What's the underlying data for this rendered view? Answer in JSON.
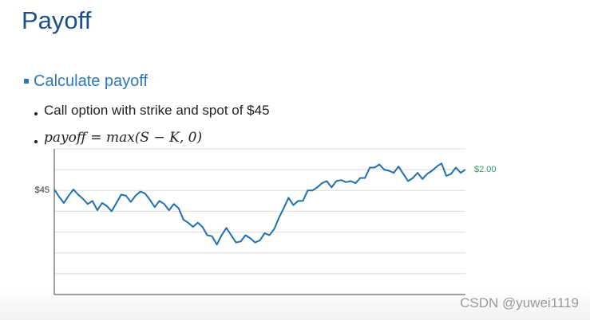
{
  "title": "Payoff",
  "bullets": [
    "Calculate payoff",
    "Call option with strike and spot of $45",
    "payoff = max(S − K, 0)"
  ],
  "watermark": "CSDN @yuwei1119",
  "chart_data": {
    "type": "line",
    "values": [
      45.1,
      44.4,
      43.8,
      44.5,
      45.1,
      44.6,
      44.2,
      43.7,
      44.0,
      43.1,
      43.8,
      43.5,
      43.0,
      43.8,
      44.6,
      44.5,
      43.9,
      44.5,
      44.9,
      44.7,
      44.1,
      43.4,
      44.0,
      43.7,
      43.1,
      43.7,
      43.3,
      42.2,
      41.9,
      41.5,
      41.9,
      41.5,
      40.7,
      40.6,
      39.8,
      40.7,
      41.4,
      40.7,
      40.0,
      40.1,
      40.7,
      40.4,
      40.0,
      40.2,
      40.9,
      40.7,
      41.3,
      42.4,
      43.3,
      44.3,
      43.6,
      44.0,
      44.0,
      45.0,
      45.0,
      45.3,
      45.7,
      45.9,
      45.3,
      45.9,
      46.0,
      45.8,
      45.9,
      45.7,
      46.2,
      46.2,
      47.2,
      47.2,
      47.5,
      47.0,
      46.9,
      46.7,
      47.3,
      46.6,
      45.9,
      46.2,
      46.7,
      46.1,
      46.6,
      46.9,
      47.3,
      47.6,
      46.4,
      46.6,
      47.2,
      46.7,
      47.0
    ],
    "color": "#1f6fb5",
    "ylim": [
      35,
      49
    ],
    "yticks": [
      {
        "value": 45,
        "label": "$45"
      }
    ],
    "gridlines": [
      37,
      39,
      41,
      43,
      45,
      47,
      49
    ],
    "end_annotation": "$2.00",
    "annotation_color": "#2e9a5e"
  }
}
